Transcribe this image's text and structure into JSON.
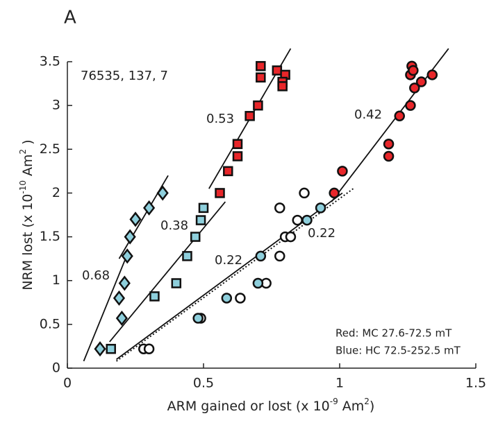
{
  "panel_label": "A",
  "chart_data": {
    "type": "scatter",
    "xlabel_parts": [
      "ARM gained or lost (x 10",
      "-9",
      " Am",
      "2",
      ")"
    ],
    "ylabel_parts": [
      "NRM lost (x 10",
      "-10",
      " Am",
      "2",
      " )"
    ],
    "xlim": [
      0,
      1.5
    ],
    "ylim": [
      0,
      3.5
    ],
    "xticks": [
      0,
      0.5,
      1,
      1.5
    ],
    "yticks": [
      0,
      0.5,
      1,
      1.5,
      2,
      2.5,
      3,
      3.5
    ],
    "series": [
      {
        "marker": "diamond",
        "color": "#8ecfdc",
        "x": [
          0.12,
          0.2,
          0.19,
          0.21,
          0.22,
          0.23,
          0.25,
          0.3,
          0.35
        ],
        "y": [
          0.22,
          0.57,
          0.8,
          0.97,
          1.28,
          1.5,
          1.7,
          1.83,
          2.0
        ]
      },
      {
        "marker": "square",
        "color": "#8ecfdc",
        "x": [
          0.16,
          0.32,
          0.4,
          0.44,
          0.47,
          0.49,
          0.5
        ],
        "y": [
          0.22,
          0.82,
          0.97,
          1.28,
          1.5,
          1.69,
          1.83
        ]
      },
      {
        "marker": "square",
        "color": "#e8262a",
        "x": [
          0.56,
          0.59,
          0.625,
          0.625,
          0.67,
          0.7,
          0.71,
          0.71,
          0.77,
          0.8,
          0.79,
          0.79
        ],
        "y": [
          2.0,
          2.25,
          2.42,
          2.56,
          2.88,
          3.0,
          3.32,
          3.45,
          3.4,
          3.35,
          3.27,
          3.22
        ]
      },
      {
        "marker": "circle",
        "color": "#ffffff",
        "x": [
          0.28,
          0.3,
          0.49,
          0.635,
          0.73,
          0.78,
          0.8,
          0.82,
          0.845,
          0.78,
          0.87
        ],
        "y": [
          0.22,
          0.22,
          0.57,
          0.8,
          0.97,
          1.28,
          1.5,
          1.5,
          1.69,
          1.83,
          2.0
        ]
      },
      {
        "marker": "circle",
        "color": "#8ecfdc",
        "x": [
          0.48,
          0.585,
          0.7,
          0.71,
          0.88,
          0.93
        ],
        "y": [
          0.57,
          0.8,
          0.97,
          1.28,
          1.69,
          1.83
        ]
      },
      {
        "marker": "circle",
        "color": "#e8262a",
        "x": [
          0.98,
          1.01,
          1.18,
          1.18,
          1.22,
          1.26,
          1.275,
          1.3,
          1.26,
          1.265,
          1.27,
          1.34
        ],
        "y": [
          2.0,
          2.25,
          2.42,
          2.56,
          2.88,
          3.0,
          3.2,
          3.27,
          3.35,
          3.45,
          3.4,
          3.35
        ]
      }
    ],
    "fit_lines": [
      {
        "style": "solid",
        "x": [
          0.06,
          0.22
        ],
        "y": [
          0.08,
          1.3
        ]
      },
      {
        "style": "solid",
        "x": [
          0.19,
          0.37
        ],
        "y": [
          1.25,
          2.2
        ]
      },
      {
        "style": "solid",
        "x": [
          0.155,
          0.58
        ],
        "y": [
          0.3,
          1.9
        ]
      },
      {
        "style": "solid",
        "x": [
          0.52,
          0.82
        ],
        "y": [
          2.05,
          3.65
        ]
      },
      {
        "style": "solid",
        "x": [
          0.18,
          1.01
        ],
        "y": [
          0.1,
          2.0
        ]
      },
      {
        "style": "dotted",
        "x": [
          0.18,
          1.05
        ],
        "y": [
          0.08,
          2.05
        ]
      },
      {
        "style": "solid",
        "x": [
          0.97,
          1.4
        ],
        "y": [
          1.9,
          3.65
        ]
      }
    ],
    "annotations": [
      "76535, 137, 7",
      "0.68",
      "0.38",
      "0.53",
      "0.22",
      "0.22",
      "0.42",
      "Red: MC 27.6-72.5 mT",
      "Blue: HC 72.5-252.5 mT"
    ]
  }
}
